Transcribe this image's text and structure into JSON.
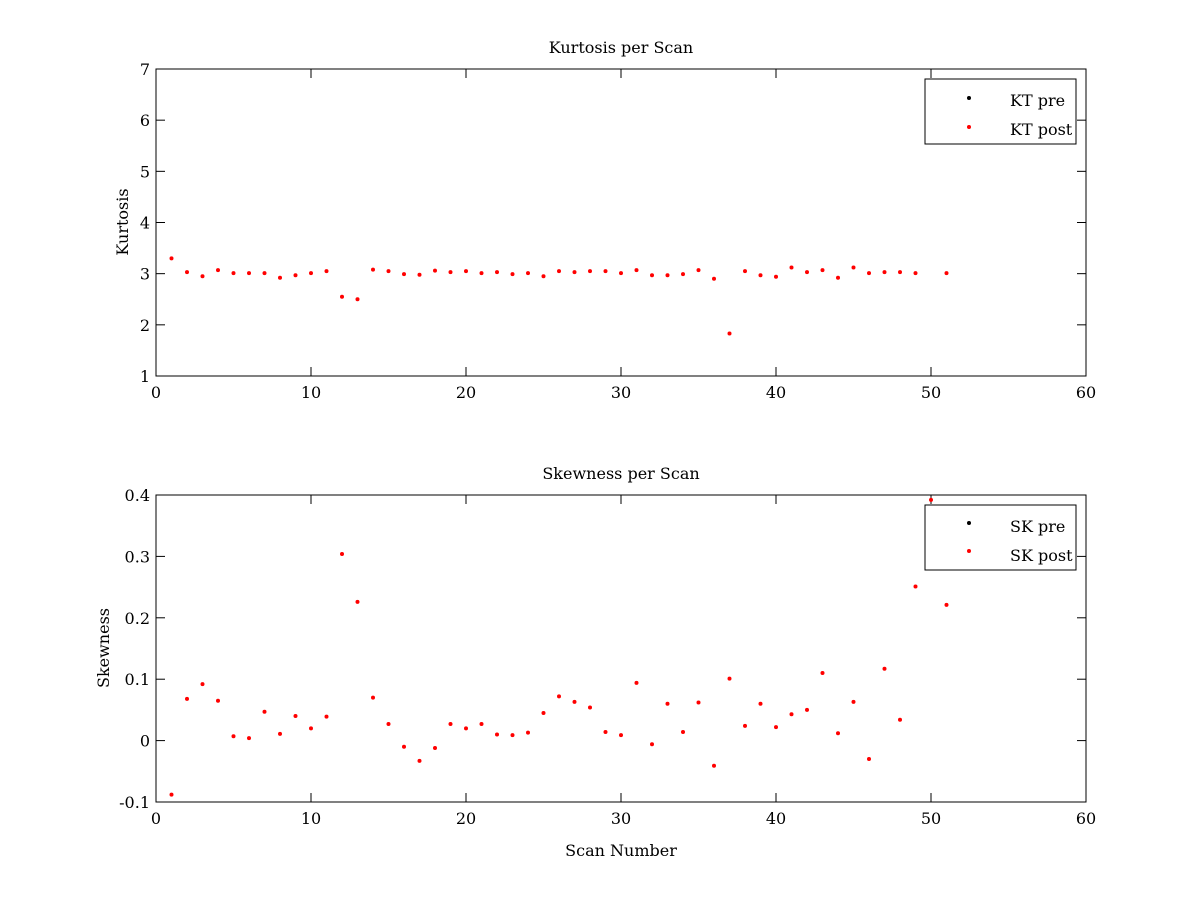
{
  "chart_data": [
    {
      "type": "scatter",
      "title": "Kurtosis per Scan",
      "xlabel": "",
      "ylabel": "Kurtosis",
      "xlim": [
        0,
        60
      ],
      "ylim": [
        1,
        7
      ],
      "xticks": [
        0,
        10,
        20,
        30,
        40,
        50,
        60
      ],
      "yticks": [
        1,
        2,
        3,
        4,
        5,
        6,
        7
      ],
      "grid": false,
      "legend_position": "top-right",
      "series": [
        {
          "name": "KT pre",
          "color": "#000000",
          "marker": "dot",
          "x": [],
          "y": []
        },
        {
          "name": "KT post",
          "color": "#ff0000",
          "marker": "dot",
          "x": [
            1,
            2,
            3,
            4,
            5,
            6,
            7,
            8,
            9,
            10,
            11,
            12,
            13,
            14,
            15,
            16,
            17,
            18,
            19,
            20,
            21,
            22,
            23,
            24,
            25,
            26,
            27,
            28,
            29,
            30,
            31,
            32,
            33,
            34,
            35,
            36,
            37,
            38,
            39,
            40,
            41,
            42,
            43,
            44,
            45,
            46,
            47,
            48,
            49,
            51
          ],
          "y": [
            3.3,
            3.03,
            2.95,
            3.07,
            3.01,
            3.01,
            3.01,
            2.92,
            2.97,
            3.01,
            3.05,
            2.55,
            2.5,
            3.08,
            3.05,
            2.99,
            2.98,
            3.06,
            3.03,
            3.05,
            3.01,
            3.03,
            2.99,
            3.01,
            2.95,
            3.05,
            3.03,
            3.05,
            3.05,
            3.01,
            3.07,
            2.97,
            2.97,
            2.99,
            3.07,
            2.9,
            1.83,
            3.05,
            2.97,
            2.94,
            3.12,
            3.03,
            3.07,
            2.92,
            3.12,
            3.01,
            3.03,
            3.03,
            3.01,
            3.01
          ]
        }
      ]
    },
    {
      "type": "scatter",
      "title": "Skewness per Scan",
      "xlabel": "Scan Number",
      "ylabel": "Skewness",
      "xlim": [
        0,
        60
      ],
      "ylim": [
        -0.1,
        0.4
      ],
      "xticks": [
        0,
        10,
        20,
        30,
        40,
        50,
        60
      ],
      "yticks": [
        -0.1,
        0,
        0.1,
        0.2,
        0.3,
        0.4
      ],
      "grid": false,
      "legend_position": "top-right",
      "series": [
        {
          "name": "SK pre",
          "color": "#000000",
          "marker": "dot",
          "x": [],
          "y": []
        },
        {
          "name": "SK post",
          "color": "#ff0000",
          "marker": "dot",
          "x": [
            1,
            2,
            3,
            4,
            5,
            6,
            7,
            8,
            9,
            10,
            11,
            12,
            13,
            14,
            15,
            16,
            17,
            18,
            19,
            20,
            21,
            22,
            23,
            24,
            25,
            26,
            27,
            28,
            29,
            30,
            31,
            32,
            33,
            34,
            35,
            36,
            37,
            38,
            39,
            40,
            41,
            42,
            43,
            44,
            45,
            46,
            47,
            48,
            49,
            50,
            51
          ],
          "y": [
            -0.088,
            0.068,
            0.092,
            0.065,
            0.007,
            0.004,
            0.047,
            0.011,
            0.04,
            0.02,
            0.039,
            0.304,
            0.226,
            0.07,
            0.027,
            -0.01,
            -0.033,
            -0.012,
            0.027,
            0.02,
            0.027,
            0.01,
            0.009,
            0.013,
            0.045,
            0.072,
            0.063,
            0.054,
            0.014,
            0.009,
            0.094,
            -0.006,
            0.06,
            0.014,
            0.062,
            -0.041,
            0.101,
            0.024,
            0.06,
            0.022,
            0.043,
            0.05,
            0.11,
            0.012,
            0.063,
            -0.03,
            0.117,
            0.034,
            0.251,
            0.392,
            0.221
          ]
        }
      ]
    }
  ]
}
